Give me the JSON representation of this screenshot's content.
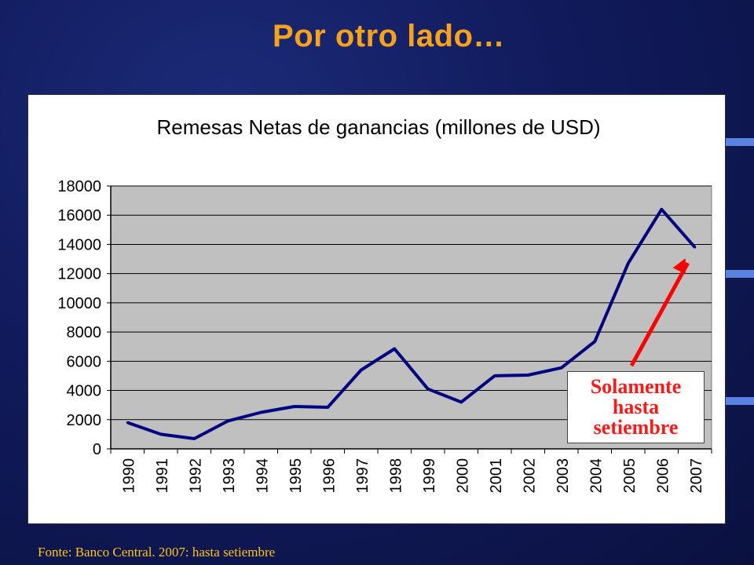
{
  "slide": {
    "title": "Por otro lado…",
    "footer": "Fonte: Banco Central. 2007: hasta setiembre",
    "callout": [
      "Solamente",
      "hasta",
      "setiembre"
    ]
  },
  "colors": {
    "background": "#111b5c",
    "title": "#f7a21b",
    "plot_area": "#c0c0c0",
    "line": "#000080",
    "arrow": "#ff0000",
    "footer": "#ffc41a"
  },
  "chart_data": {
    "type": "line",
    "title": "Remesas Netas de ganancias (millones de USD)",
    "xlabel": "",
    "ylabel": "",
    "categories": [
      "1990",
      "1991",
      "1992",
      "1993",
      "1994",
      "1995",
      "1996",
      "1997",
      "1998",
      "1999",
      "2000",
      "2001",
      "2002",
      "2003",
      "2004",
      "2005",
      "2006",
      "2007"
    ],
    "series": [
      {
        "values": [
          1800,
          1000,
          700,
          1900,
          2500,
          2900,
          2850,
          5400,
          6850,
          4100,
          3200,
          5000,
          5050,
          5550,
          7350,
          12700,
          16400,
          13800
        ]
      }
    ],
    "ylim": [
      0,
      18000
    ],
    "yticks": [
      0,
      2000,
      4000,
      6000,
      8000,
      10000,
      12000,
      14000,
      16000,
      18000
    ],
    "grid": true,
    "legend": "none"
  }
}
